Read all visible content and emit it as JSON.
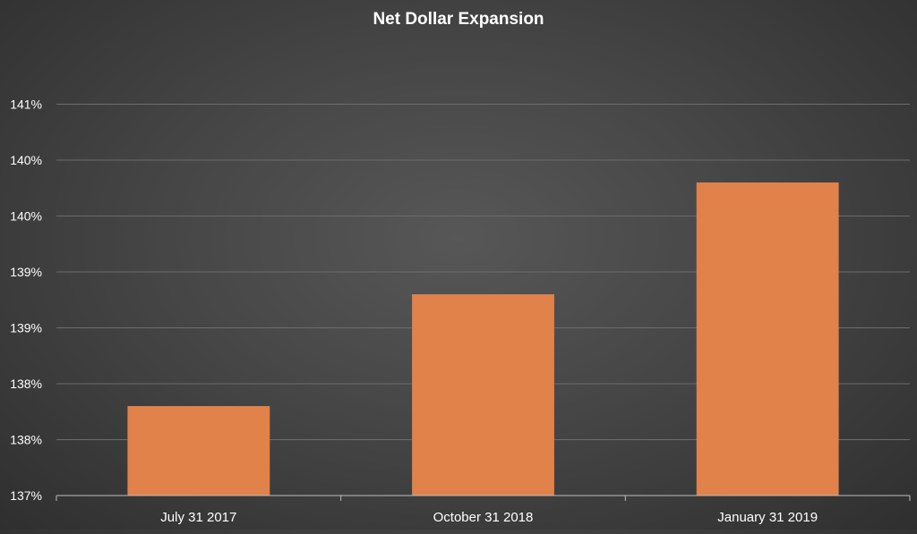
{
  "chart_data": {
    "type": "bar",
    "title": "Net Dollar Expansion",
    "categories": [
      "July 31 2017",
      "October 31 2018",
      "January 31 2019"
    ],
    "values": [
      137.8,
      138.8,
      139.8
    ],
    "ylim": [
      137.0,
      141.0
    ],
    "y_ticks": [
      {
        "value": 137.0,
        "label": "137%"
      },
      {
        "value": 137.5,
        "label": "138%"
      },
      {
        "value": 138.0,
        "label": "138%"
      },
      {
        "value": 138.5,
        "label": "139%"
      },
      {
        "value": 139.0,
        "label": "139%"
      },
      {
        "value": 139.5,
        "label": "140%"
      },
      {
        "value": 140.0,
        "label": "140%"
      },
      {
        "value": 140.5,
        "label": "141%"
      }
    ],
    "bar_color": "#E0824A",
    "grid": true,
    "legend": "none"
  }
}
